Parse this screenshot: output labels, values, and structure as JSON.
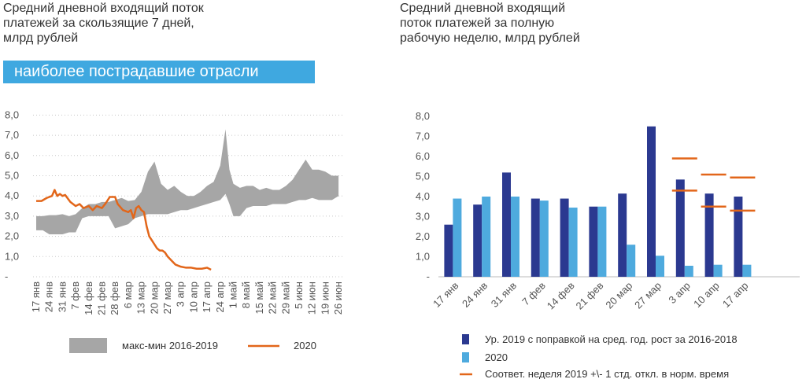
{
  "left_chart": {
    "title": "Средний дневной входящий поток\nплатежей за скользящие 7 дней,\nмлрд рублей",
    "banner": "наиболее пострадавшие отрасли"
  },
  "right_chart": {
    "title": "Средний дневной входящий\nпоток платежей за полную\nрабочую неделю, млрд рублей"
  },
  "colors": {
    "band": "#a6a6a6",
    "line2020": "#e2661a",
    "dark": "#2b3990",
    "light": "#4eaade",
    "banner": "#3fa8e0"
  },
  "chart_data": [
    {
      "type": "area",
      "title": "Средний дневной входящий поток платежей за скользящие 7 дней, млрд рублей",
      "ylim": [
        0,
        8
      ],
      "y_ticks": [
        "-",
        "1,0",
        "2,0",
        "3,0",
        "4,0",
        "5,0",
        "6,0",
        "7,0",
        "8,0"
      ],
      "x_ticks": [
        "17 янв",
        "24 янв",
        "31 янв",
        "7 фев",
        "14 фев",
        "21 фев",
        "28 фев",
        "6 мар",
        "13 мар",
        "20 мар",
        "27 мар",
        "3 апр",
        "10 апр",
        "17 апр",
        "24 апр",
        "1 май",
        "8 май",
        "15 май",
        "22 май",
        "29 май",
        "5 июн",
        "12 июн",
        "19 июн",
        "26 июн"
      ],
      "legend": [
        "макс-мин 2016-2019",
        "2020"
      ],
      "band": {
        "name": "макс-мин 2016-2019",
        "x_week": [
          0,
          0.5,
          1,
          1.5,
          2,
          2.5,
          3,
          3.5,
          4,
          4.5,
          5,
          5.5,
          6,
          6.5,
          7,
          7.5,
          8,
          8.5,
          9,
          9.5,
          10,
          10.5,
          11,
          11.5,
          12,
          12.5,
          13,
          13.5,
          14,
          14.4,
          14.7,
          15,
          15.5,
          16,
          16.5,
          17,
          17.5,
          18,
          18.5,
          19,
          19.5,
          20,
          20.5,
          21,
          21.5,
          22,
          22.5,
          23
        ],
        "high": [
          3.0,
          3.0,
          3.05,
          3.05,
          3.1,
          3.0,
          3.1,
          3.4,
          3.6,
          3.6,
          3.7,
          3.7,
          3.8,
          3.9,
          3.75,
          3.8,
          4.2,
          5.2,
          5.7,
          4.6,
          4.3,
          4.5,
          4.2,
          4.0,
          4.0,
          4.2,
          4.5,
          4.7,
          5.5,
          7.3,
          5.3,
          4.6,
          4.4,
          4.5,
          4.5,
          4.3,
          4.4,
          4.3,
          4.3,
          4.5,
          4.8,
          5.3,
          5.8,
          5.3,
          5.3,
          5.2,
          5.0,
          5.0
        ],
        "low": [
          2.3,
          2.3,
          2.1,
          2.1,
          2.1,
          2.2,
          2.2,
          2.9,
          3.0,
          3.0,
          3.0,
          3.0,
          2.4,
          2.5,
          2.6,
          2.9,
          3.0,
          3.1,
          3.1,
          3.1,
          3.1,
          3.2,
          3.3,
          3.3,
          3.4,
          3.5,
          3.6,
          3.7,
          3.8,
          4.1,
          3.6,
          3.0,
          3.0,
          3.4,
          3.5,
          3.5,
          3.5,
          3.6,
          3.6,
          3.6,
          3.7,
          3.8,
          3.8,
          3.9,
          3.8,
          3.8,
          3.8,
          4.0
        ]
      },
      "series": [
        {
          "name": "2020",
          "x_week": [
            0,
            0.4,
            0.8,
            1.2,
            1.4,
            1.6,
            1.8,
            2.0,
            2.2,
            2.6,
            3.0,
            3.3,
            3.6,
            4.0,
            4.3,
            4.6,
            5.0,
            5.3,
            5.6,
            6.0,
            6.2,
            6.6,
            7.0,
            7.2,
            7.4,
            7.6,
            7.8,
            8.0,
            8.2,
            8.4,
            8.6,
            8.8,
            9.0,
            9.2,
            9.4,
            9.6,
            9.8,
            10.0,
            10.3,
            10.6,
            11.0,
            11.4,
            11.8,
            12.2,
            12.6,
            13.0,
            13.3
          ],
          "values": [
            3.75,
            3.75,
            3.9,
            4.0,
            4.3,
            4.0,
            4.1,
            4.0,
            4.05,
            3.7,
            3.5,
            3.6,
            3.4,
            3.5,
            3.3,
            3.5,
            3.4,
            3.65,
            3.95,
            3.95,
            3.6,
            3.3,
            3.2,
            3.3,
            2.9,
            3.4,
            3.5,
            3.3,
            3.2,
            2.5,
            2.0,
            1.8,
            1.6,
            1.4,
            1.3,
            1.3,
            1.2,
            1.0,
            0.8,
            0.6,
            0.5,
            0.45,
            0.45,
            0.4,
            0.4,
            0.45,
            0.35
          ]
        }
      ]
    },
    {
      "type": "bar",
      "title": "Средний дневной входящий поток платежей за полную рабочую неделю, млрд рублей",
      "ylim": [
        0,
        8
      ],
      "y_ticks": [
        "-",
        "1,0",
        "2,0",
        "3,0",
        "4,0",
        "5,0",
        "6,0",
        "7,0",
        "8,0"
      ],
      "categories": [
        "17 янв",
        "24 янв",
        "31 янв",
        "7 фев",
        "14 фев",
        "21 фев",
        "20 мар",
        "27 мар",
        "3 апр",
        "10 апр",
        "17 апр"
      ],
      "series": [
        {
          "name": "Ур. 2019 с поправкой на сред. год. рост за 2016-2018",
          "values": [
            2.6,
            3.6,
            5.2,
            3.9,
            3.9,
            3.5,
            4.15,
            7.5,
            4.85,
            4.15,
            4.0
          ]
        },
        {
          "name": "2020",
          "values": [
            3.9,
            4.0,
            4.0,
            3.8,
            3.45,
            3.5,
            1.6,
            1.05,
            0.55,
            0.6,
            0.6
          ]
        }
      ],
      "std_range": {
        "name": "Соответ. неделя 2019 +\\- 1 стд. откл. в норм. время",
        "categories": [
          "3 апр",
          "10 апр",
          "17 апр"
        ],
        "upper": [
          5.9,
          5.1,
          4.95
        ],
        "lower": [
          4.3,
          3.5,
          3.3
        ]
      },
      "legend": [
        "Ур. 2019 с поправкой на сред. год. рост за 2016-2018",
        "2020",
        "Соответ. неделя 2019 +\\- 1 стд. откл. в норм. время"
      ]
    }
  ]
}
